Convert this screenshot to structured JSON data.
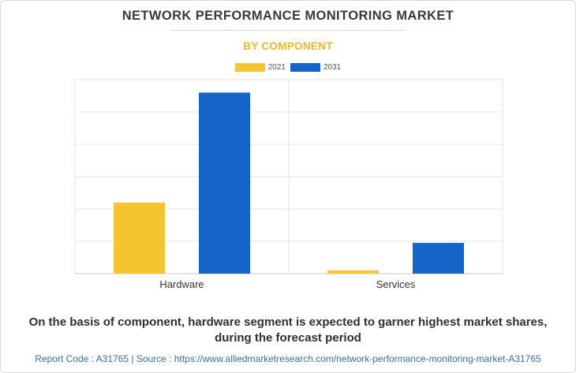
{
  "title": "NETWORK PERFORMANCE MONITORING MARKET",
  "subtitle": "BY COMPONENT",
  "footnote_line1": "On the basis of component, hardware segment is expected to garner highest market shares,",
  "footnote_line2": "during the forecast period",
  "source_text": "Report Code : A31765  |  Source : https://www.alliedmarketresearch.com/network-performance-monitoring-market-A31765",
  "colors": {
    "series_2021": "#f4c531",
    "series_2031": "#1565c9",
    "grid": "#e6e6e6"
  },
  "chart_data": {
    "type": "bar",
    "categories": [
      "Hardware",
      "Services"
    ],
    "series": [
      {
        "name": "2021",
        "values": [
          2.2,
          0.1
        ]
      },
      {
        "name": "2031",
        "values": [
          5.6,
          0.95
        ]
      }
    ],
    "ylim": [
      0,
      6
    ],
    "grid": true,
    "legend": "top-center"
  }
}
